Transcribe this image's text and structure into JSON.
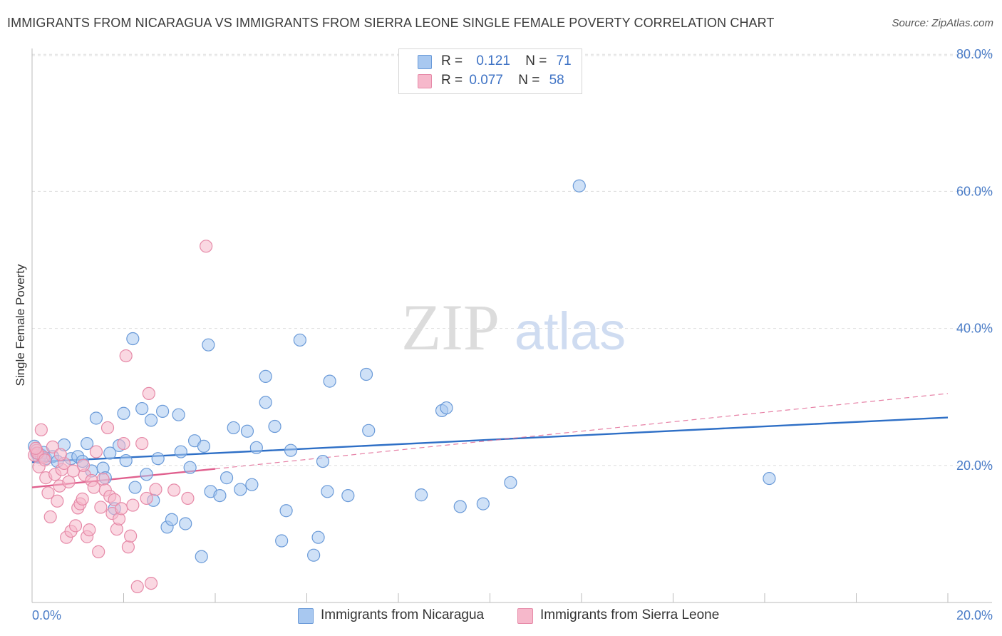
{
  "header": {
    "title": "IMMIGRANTS FROM NICARAGUA VS IMMIGRANTS FROM SIERRA LEONE SINGLE FEMALE POVERTY CORRELATION CHART",
    "source": "Source: ZipAtlas.com"
  },
  "watermark": {
    "zip": "ZIP",
    "atlas": "atlas"
  },
  "legend": {
    "rows": [
      {
        "r_label": "R =",
        "r_value": "0.121",
        "n_label": "N =",
        "n_value": "71",
        "color": "#a8c8f0"
      },
      {
        "r_label": "R =",
        "r_value": "0.077",
        "n_label": "N =",
        "n_value": "58",
        "color": "#f6b8cb"
      }
    ]
  },
  "bottom_legend": {
    "items": [
      {
        "label": "Immigrants from Nicaragua",
        "color": "#a8c8f0"
      },
      {
        "label": "Immigrants from Sierra Leone",
        "color": "#f6b8cb"
      }
    ]
  },
  "chart_data": {
    "type": "scatter",
    "title": "IMMIGRANTS FROM NICARAGUA VS IMMIGRANTS FROM SIERRA LEONE SINGLE FEMALE POVERTY CORRELATION CHART",
    "xlabel": "",
    "ylabel": "Single Female Poverty",
    "xlim": [
      0,
      20
    ],
    "ylim": [
      0,
      82
    ],
    "x_tick_labels": [
      "0.0%",
      "20.0%"
    ],
    "y_tick_labels": [
      "20.0%",
      "40.0%",
      "60.0%",
      "80.0%"
    ],
    "y_ticks": [
      20,
      40,
      60,
      80
    ],
    "grid": true,
    "legend_position": "top-center",
    "series": [
      {
        "name": "Immigrants from Nicaragua",
        "color": "#a8c8f0",
        "stroke": "#6a9ad8",
        "trend": {
          "x": [
            0,
            20
          ],
          "y": [
            20.5,
            27.0
          ],
          "color": "#2e6fc6",
          "style": "solid"
        },
        "points": [
          {
            "x": 0.05,
            "y": 22.8
          },
          {
            "x": 0.1,
            "y": 21.8
          },
          {
            "x": 0.15,
            "y": 21.2
          },
          {
            "x": 0.2,
            "y": 21.5
          },
          {
            "x": 0.25,
            "y": 21.9
          },
          {
            "x": 0.3,
            "y": 21.0
          },
          {
            "x": 0.45,
            "y": 21.3
          },
          {
            "x": 0.55,
            "y": 20.6
          },
          {
            "x": 0.7,
            "y": 23.0
          },
          {
            "x": 0.85,
            "y": 21.0
          },
          {
            "x": 1.0,
            "y": 21.3
          },
          {
            "x": 1.1,
            "y": 20.6
          },
          {
            "x": 1.2,
            "y": 23.2
          },
          {
            "x": 1.3,
            "y": 19.2
          },
          {
            "x": 1.4,
            "y": 26.9
          },
          {
            "x": 1.55,
            "y": 19.6
          },
          {
            "x": 1.6,
            "y": 18.2
          },
          {
            "x": 1.7,
            "y": 21.8
          },
          {
            "x": 1.8,
            "y": 13.7
          },
          {
            "x": 1.9,
            "y": 22.9
          },
          {
            "x": 2.0,
            "y": 27.6
          },
          {
            "x": 2.05,
            "y": 20.7
          },
          {
            "x": 2.2,
            "y": 38.5
          },
          {
            "x": 2.25,
            "y": 16.8
          },
          {
            "x": 2.4,
            "y": 28.3
          },
          {
            "x": 2.5,
            "y": 18.7
          },
          {
            "x": 2.6,
            "y": 26.6
          },
          {
            "x": 2.65,
            "y": 14.9
          },
          {
            "x": 2.75,
            "y": 21.0
          },
          {
            "x": 2.85,
            "y": 27.9
          },
          {
            "x": 2.95,
            "y": 11.0
          },
          {
            "x": 3.05,
            "y": 12.1
          },
          {
            "x": 3.2,
            "y": 27.4
          },
          {
            "x": 3.25,
            "y": 22.0
          },
          {
            "x": 3.35,
            "y": 11.5
          },
          {
            "x": 3.45,
            "y": 19.7
          },
          {
            "x": 3.55,
            "y": 23.6
          },
          {
            "x": 3.7,
            "y": 6.7
          },
          {
            "x": 3.75,
            "y": 22.8
          },
          {
            "x": 3.85,
            "y": 37.6
          },
          {
            "x": 3.9,
            "y": 16.2
          },
          {
            "x": 4.1,
            "y": 15.6
          },
          {
            "x": 4.25,
            "y": 18.2
          },
          {
            "x": 4.4,
            "y": 25.5
          },
          {
            "x": 4.55,
            "y": 16.5
          },
          {
            "x": 4.7,
            "y": 25.0
          },
          {
            "x": 4.8,
            "y": 17.2
          },
          {
            "x": 4.9,
            "y": 22.6
          },
          {
            "x": 5.1,
            "y": 33.0
          },
          {
            "x": 5.1,
            "y": 29.2
          },
          {
            "x": 5.3,
            "y": 25.7
          },
          {
            "x": 5.45,
            "y": 9.0
          },
          {
            "x": 5.55,
            "y": 13.4
          },
          {
            "x": 5.65,
            "y": 22.2
          },
          {
            "x": 5.85,
            "y": 38.3
          },
          {
            "x": 6.15,
            "y": 6.9
          },
          {
            "x": 6.25,
            "y": 9.5
          },
          {
            "x": 6.35,
            "y": 20.6
          },
          {
            "x": 6.45,
            "y": 16.2
          },
          {
            "x": 6.5,
            "y": 32.3
          },
          {
            "x": 6.9,
            "y": 15.6
          },
          {
            "x": 7.3,
            "y": 33.3
          },
          {
            "x": 7.35,
            "y": 25.1
          },
          {
            "x": 8.5,
            "y": 15.7
          },
          {
            "x": 8.95,
            "y": 28.0
          },
          {
            "x": 9.05,
            "y": 28.4
          },
          {
            "x": 9.35,
            "y": 14.0
          },
          {
            "x": 9.85,
            "y": 14.4
          },
          {
            "x": 10.45,
            "y": 17.5
          },
          {
            "x": 11.95,
            "y": 60.8
          },
          {
            "x": 16.1,
            "y": 18.1
          }
        ]
      },
      {
        "name": "Immigrants from Sierra Leone",
        "color": "#f6b8cb",
        "stroke": "#e68aa8",
        "trend": {
          "x": [
            0,
            4.0
          ],
          "y": [
            16.8,
            19.5
          ],
          "color": "#e0608e",
          "style": "solid",
          "extension": {
            "x": [
              4.0,
              20
            ],
            "y": [
              19.5,
              30.5
            ],
            "style": "dashed"
          }
        },
        "points": [
          {
            "x": 0.05,
            "y": 21.5
          },
          {
            "x": 0.1,
            "y": 22.2
          },
          {
            "x": 0.15,
            "y": 19.8
          },
          {
            "x": 0.2,
            "y": 25.2
          },
          {
            "x": 0.25,
            "y": 21.2
          },
          {
            "x": 0.3,
            "y": 18.2
          },
          {
            "x": 0.35,
            "y": 16.0
          },
          {
            "x": 0.4,
            "y": 12.5
          },
          {
            "x": 0.45,
            "y": 22.7
          },
          {
            "x": 0.5,
            "y": 18.7
          },
          {
            "x": 0.55,
            "y": 14.8
          },
          {
            "x": 0.6,
            "y": 17.0
          },
          {
            "x": 0.65,
            "y": 19.4
          },
          {
            "x": 0.7,
            "y": 20.3
          },
          {
            "x": 0.75,
            "y": 9.5
          },
          {
            "x": 0.8,
            "y": 17.6
          },
          {
            "x": 0.85,
            "y": 10.4
          },
          {
            "x": 0.9,
            "y": 19.2
          },
          {
            "x": 0.95,
            "y": 11.2
          },
          {
            "x": 1.0,
            "y": 13.8
          },
          {
            "x": 1.05,
            "y": 14.4
          },
          {
            "x": 1.1,
            "y": 15.1
          },
          {
            "x": 1.15,
            "y": 18.6
          },
          {
            "x": 1.2,
            "y": 9.6
          },
          {
            "x": 1.25,
            "y": 10.6
          },
          {
            "x": 1.3,
            "y": 17.8
          },
          {
            "x": 1.35,
            "y": 16.8
          },
          {
            "x": 1.4,
            "y": 22.0
          },
          {
            "x": 1.45,
            "y": 7.4
          },
          {
            "x": 1.5,
            "y": 13.9
          },
          {
            "x": 1.55,
            "y": 18.0
          },
          {
            "x": 1.6,
            "y": 16.4
          },
          {
            "x": 1.65,
            "y": 25.5
          },
          {
            "x": 1.7,
            "y": 15.5
          },
          {
            "x": 1.75,
            "y": 13.0
          },
          {
            "x": 1.8,
            "y": 15.0
          },
          {
            "x": 1.85,
            "y": 10.7
          },
          {
            "x": 1.9,
            "y": 12.2
          },
          {
            "x": 1.95,
            "y": 13.7
          },
          {
            "x": 2.0,
            "y": 23.2
          },
          {
            "x": 2.05,
            "y": 36.0
          },
          {
            "x": 2.1,
            "y": 8.1
          },
          {
            "x": 2.15,
            "y": 9.7
          },
          {
            "x": 2.2,
            "y": 14.2
          },
          {
            "x": 2.3,
            "y": 2.3
          },
          {
            "x": 2.4,
            "y": 23.2
          },
          {
            "x": 2.5,
            "y": 15.2
          },
          {
            "x": 2.55,
            "y": 30.5
          },
          {
            "x": 2.6,
            "y": 2.8
          },
          {
            "x": 2.7,
            "y": 16.5
          },
          {
            "x": 0.12,
            "y": 21.8
          },
          {
            "x": 0.28,
            "y": 20.8
          },
          {
            "x": 0.62,
            "y": 21.6
          },
          {
            "x": 1.12,
            "y": 20.0
          },
          {
            "x": 3.1,
            "y": 16.4
          },
          {
            "x": 3.4,
            "y": 15.2
          },
          {
            "x": 3.8,
            "y": 52.0
          },
          {
            "x": 0.08,
            "y": 22.5
          }
        ]
      }
    ]
  }
}
